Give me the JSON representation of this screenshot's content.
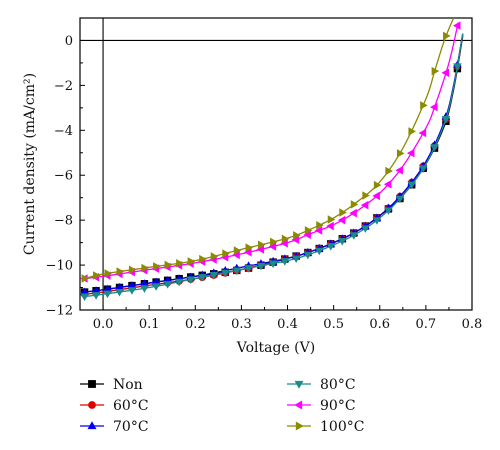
{
  "chart_data": {
    "type": "line",
    "title": "",
    "xlabel": "Voltage (V)",
    "ylabel": "Current density (mA/cm²)",
    "xlim": [
      -0.05,
      0.8
    ],
    "ylim": [
      -12,
      1
    ],
    "x_ticks": [
      "0.0",
      "0.1",
      "0.2",
      "0.3",
      "0.4",
      "0.5",
      "0.6",
      "0.7",
      "0.8"
    ],
    "y_ticks": [
      "0",
      "−2",
      "−4",
      "−6",
      "−8",
      "−10",
      "−12"
    ],
    "grid": false,
    "reference_lines": {
      "x": 0,
      "y": 0
    },
    "legend_placement": "bottom",
    "series": [
      {
        "name": "Non",
        "color": "#000000",
        "marker": "square",
        "x": [
          -0.04,
          0.0,
          0.1,
          0.2,
          0.3,
          0.4,
          0.45,
          0.5,
          0.55,
          0.6,
          0.65,
          0.7,
          0.74,
          0.76,
          0.78
        ],
        "y": [
          -11.2,
          -11.1,
          -10.8,
          -10.5,
          -10.2,
          -9.7,
          -9.4,
          -9.0,
          -8.5,
          -7.8,
          -6.9,
          -5.5,
          -3.8,
          -2.2,
          0.2
        ]
      },
      {
        "name": "60°C",
        "color": "#e00000",
        "marker": "circle",
        "x": [
          -0.04,
          0.0,
          0.1,
          0.2,
          0.3,
          0.4,
          0.45,
          0.5,
          0.55,
          0.6,
          0.65,
          0.7,
          0.74,
          0.76,
          0.78
        ],
        "y": [
          -11.3,
          -11.2,
          -10.9,
          -10.6,
          -10.2,
          -9.7,
          -9.4,
          -9.0,
          -8.5,
          -7.8,
          -6.8,
          -5.4,
          -3.7,
          -2.1,
          0.3
        ]
      },
      {
        "name": "70°C",
        "color": "#0000ee",
        "marker": "triangle-up",
        "x": [
          -0.04,
          0.0,
          0.1,
          0.2,
          0.3,
          0.4,
          0.45,
          0.5,
          0.55,
          0.6,
          0.65,
          0.7,
          0.74,
          0.76,
          0.78
        ],
        "y": [
          -11.2,
          -11.1,
          -10.8,
          -10.5,
          -10.1,
          -9.7,
          -9.4,
          -9.0,
          -8.5,
          -7.8,
          -6.8,
          -5.4,
          -3.6,
          -2.0,
          0.3
        ]
      },
      {
        "name": "80°C",
        "color": "#1a8a8a",
        "marker": "triangle-down",
        "x": [
          -0.04,
          0.0,
          0.1,
          0.2,
          0.3,
          0.4,
          0.45,
          0.5,
          0.55,
          0.6,
          0.65,
          0.7,
          0.74,
          0.76,
          0.78
        ],
        "y": [
          -11.4,
          -11.3,
          -11.0,
          -10.6,
          -10.2,
          -9.8,
          -9.5,
          -9.1,
          -8.6,
          -7.9,
          -6.9,
          -5.5,
          -3.7,
          -2.1,
          0.3
        ]
      },
      {
        "name": "90°C",
        "color": "#ff00ff",
        "marker": "triangle-left",
        "x": [
          -0.04,
          0.0,
          0.1,
          0.2,
          0.3,
          0.4,
          0.45,
          0.5,
          0.55,
          0.6,
          0.65,
          0.7,
          0.72,
          0.75,
          0.77
        ],
        "y": [
          -10.6,
          -10.5,
          -10.2,
          -9.9,
          -9.5,
          -9.0,
          -8.6,
          -8.2,
          -7.6,
          -6.8,
          -5.6,
          -3.9,
          -2.9,
          -1.0,
          0.8
        ]
      },
      {
        "name": "100°C",
        "color": "#8b8b00",
        "marker": "triangle-right",
        "x": [
          -0.04,
          0.0,
          0.1,
          0.2,
          0.3,
          0.4,
          0.45,
          0.5,
          0.55,
          0.6,
          0.65,
          0.7,
          0.72,
          0.74,
          0.76
        ],
        "y": [
          -10.6,
          -10.4,
          -10.1,
          -9.8,
          -9.3,
          -8.8,
          -8.4,
          -7.9,
          -7.2,
          -6.3,
          -4.8,
          -2.6,
          -1.3,
          0.0,
          1.0
        ]
      }
    ]
  }
}
